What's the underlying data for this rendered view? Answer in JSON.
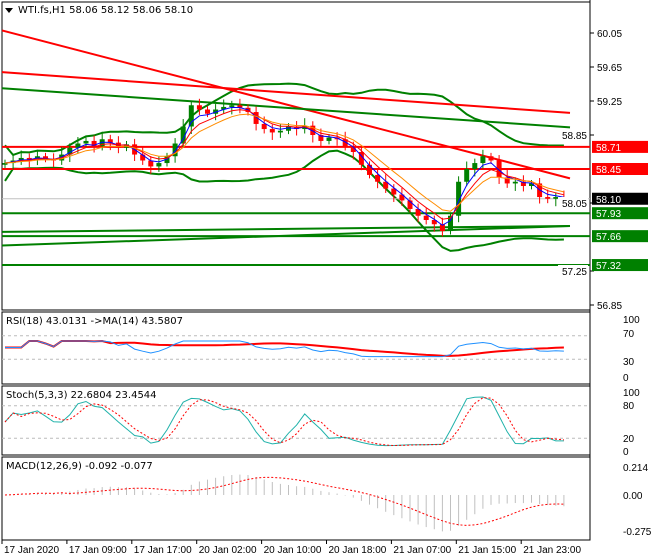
{
  "main": {
    "title": "WTI.fs,H1  58.06 58.12 58.06 58.10",
    "current_price_label": "58.10",
    "price_ticks": [
      "60.05",
      "59.65",
      "59.25",
      "58.85",
      "58.05",
      "57.25",
      "56.85"
    ],
    "levels": [
      {
        "label": "58.71",
        "price": 58.71,
        "color": "#ff0000"
      },
      {
        "label": "58.45",
        "price": 58.45,
        "color": "#ff0000"
      },
      {
        "label": "57.93",
        "price": 57.93,
        "color": "#008000"
      },
      {
        "label": "57.66",
        "price": 57.66,
        "color": "#008000"
      },
      {
        "label": "57.32",
        "price": 57.32,
        "color": "#008000"
      }
    ],
    "trendlines": [
      {
        "from": 60.08,
        "to": 58.34,
        "color": "#ff0000"
      },
      {
        "from": 59.59,
        "to": 59.11,
        "color": "#ff0000"
      },
      {
        "from": 59.4,
        "to": 58.94,
        "color": "#008000"
      },
      {
        "from": 57.71,
        "to": 57.78,
        "color": "#008000"
      },
      {
        "from": 57.55,
        "to": 57.78,
        "color": "#008000"
      }
    ],
    "colors": {
      "bull": "#008000",
      "bear": "#ff0000",
      "bands": "#008000",
      "ma_fast": "#0000ff",
      "ma_mid": "#ff0000",
      "ma_slow": "#ff8c00",
      "current": "#000000"
    }
  },
  "rsi": {
    "title": "RSI(18) 43.0131  ->MA(14) 43.5807",
    "ticks": [
      "100",
      "70",
      "30",
      "0"
    ],
    "colors": {
      "rsi": "#1e90ff",
      "ma": "#ff0000"
    }
  },
  "stoch": {
    "title": "Stoch(5,3,3) 22.6804 23.4544",
    "ticks": [
      "100",
      "80",
      "20",
      "0"
    ],
    "colors": {
      "main": "#20b2aa",
      "signal": "#ff0000"
    }
  },
  "macd": {
    "title": "MACD(12,26,9) -0.092 -0.077",
    "ticks": [
      "0.214",
      "0.00",
      "-0.275"
    ],
    "colors": {
      "hist": "#c0c0c0",
      "signal": "#ff0000"
    }
  },
  "time_labels": [
    "17 Jan 2020",
    "17 Jan 09:00",
    "17 Jan 17:00",
    "20 Jan 02:00",
    "20 Jan 10:00",
    "20 Jan 18:00",
    "21 Jan 07:00",
    "21 Jan 15:00",
    "21 Jan 23:00"
  ],
  "chart_data": {
    "type": "candlestick",
    "symbol": "WTI.fs",
    "timeframe": "H1",
    "ylim": [
      56.85,
      60.05
    ],
    "close": [
      58.52,
      58.55,
      58.58,
      58.56,
      58.6,
      58.57,
      58.55,
      58.62,
      58.7,
      58.75,
      58.78,
      58.72,
      58.8,
      58.76,
      58.7,
      58.74,
      58.62,
      58.55,
      58.48,
      58.52,
      58.6,
      58.75,
      58.95,
      59.2,
      59.15,
      59.1,
      59.15,
      59.18,
      59.2,
      59.17,
      59.12,
      58.98,
      58.92,
      58.88,
      58.9,
      58.95,
      58.92,
      58.96,
      58.85,
      58.78,
      58.82,
      58.8,
      58.72,
      58.65,
      58.5,
      58.38,
      58.3,
      58.22,
      58.15,
      58.08,
      57.98,
      57.9,
      57.85,
      57.8,
      57.72,
      57.9,
      58.3,
      58.45,
      58.52,
      58.6,
      58.55,
      58.35,
      58.28,
      58.3,
      58.25,
      58.28,
      58.12,
      58.1,
      58.12,
      58.1
    ]
  }
}
